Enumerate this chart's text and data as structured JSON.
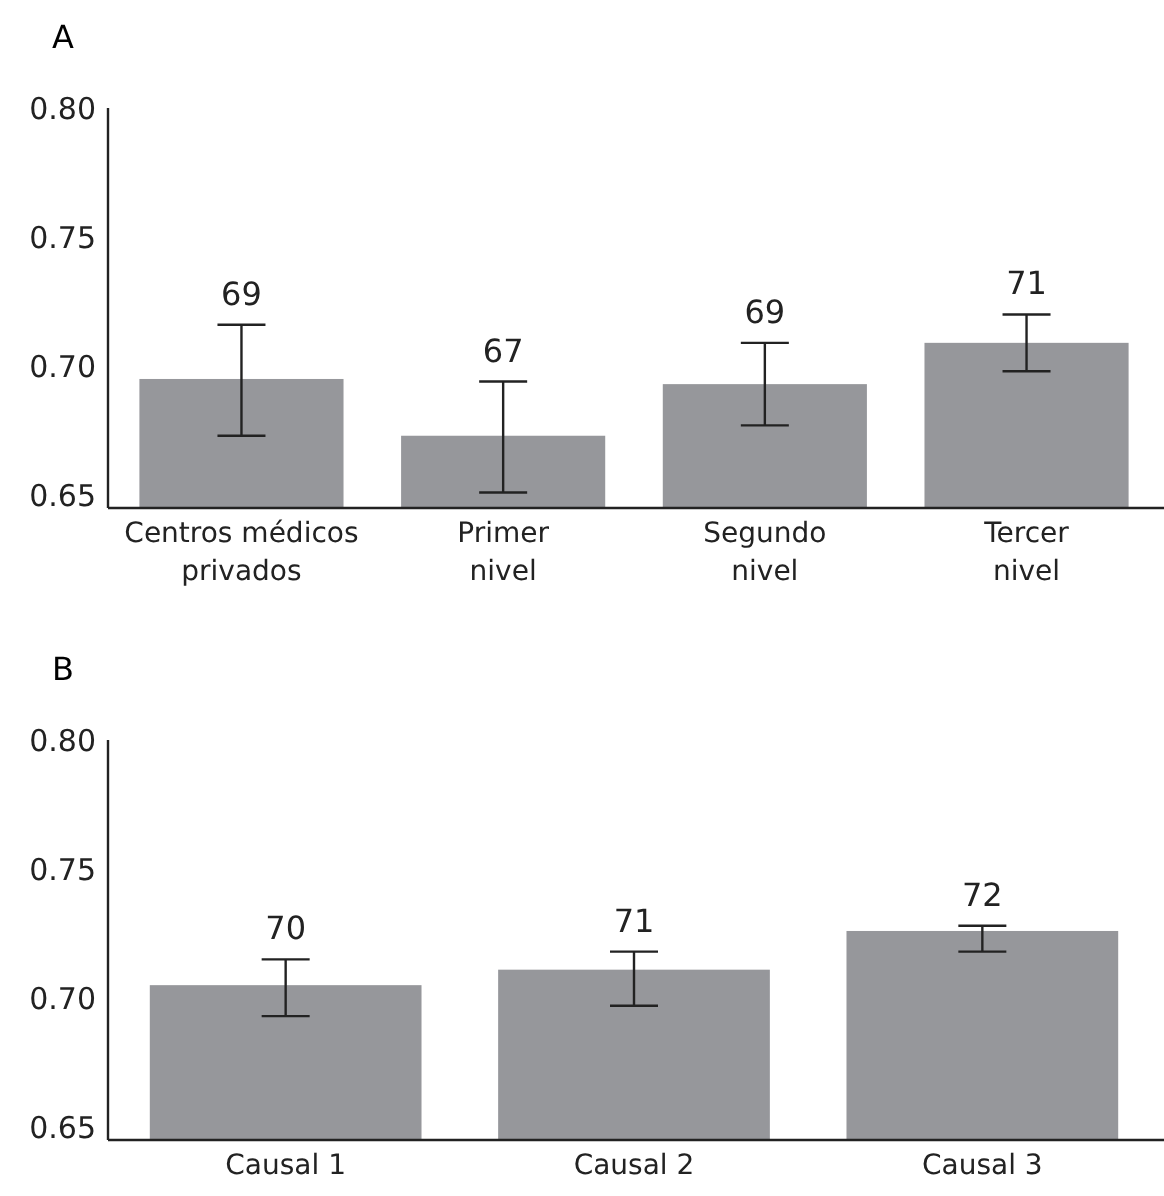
{
  "chart_data": [
    {
      "type": "bar",
      "title": "A",
      "categories": [
        "Centros médicos privados",
        "Primer nivel",
        "Segundo nivel",
        "Tercer nivel"
      ],
      "values": [
        0.695,
        0.673,
        0.693,
        0.709
      ],
      "errors": [
        [
          0.673,
          0.716
        ],
        [
          0.651,
          0.694
        ],
        [
          0.677,
          0.709
        ],
        [
          0.698,
          0.72
        ]
      ],
      "color": "#96979b",
      "ylim": [
        0.645,
        0.8
      ],
      "yticks": [
        {
          "value": 0.65,
          "label": "0.65"
        },
        {
          "value": 0.7,
          "label": "0.70"
        },
        {
          "value": 0.75,
          "label": "0.75"
        },
        {
          "value": 0.8,
          "label": "0.80"
        }
      ],
      "annotations": [
        {
          "text": "69",
          "x": "Centros médicos privados",
          "y": 0.716
        },
        {
          "text": "67",
          "x": "Primer nivel",
          "y": 0.694
        },
        {
          "text": "69",
          "x": "Segundo nivel",
          "y": 0.709
        },
        {
          "text": "71",
          "x": "Tercer nivel",
          "y": 0.72
        }
      ]
    },
    {
      "type": "bar",
      "title": "B",
      "categories": [
        "Causal 1",
        "Causal 2",
        "Causal 3"
      ],
      "values": [
        0.705,
        0.711,
        0.726
      ],
      "errors": [
        [
          0.693,
          0.715
        ],
        [
          0.697,
          0.718
        ],
        [
          0.718,
          0.728
        ]
      ],
      "color": "#96979b",
      "ylim": [
        0.645,
        0.8
      ],
      "yticks": [
        {
          "value": 0.65,
          "label": "0.65"
        },
        {
          "value": 0.7,
          "label": "0.70"
        },
        {
          "value": 0.75,
          "label": "0.75"
        },
        {
          "value": 0.8,
          "label": "0.80"
        }
      ],
      "annotations": [
        {
          "text": "70",
          "x": "Causal 1",
          "y": 0.715
        },
        {
          "text": "71",
          "x": "Causal 2",
          "y": 0.718
        },
        {
          "text": "72",
          "x": "Causal 3",
          "y": 0.728
        }
      ]
    }
  ]
}
